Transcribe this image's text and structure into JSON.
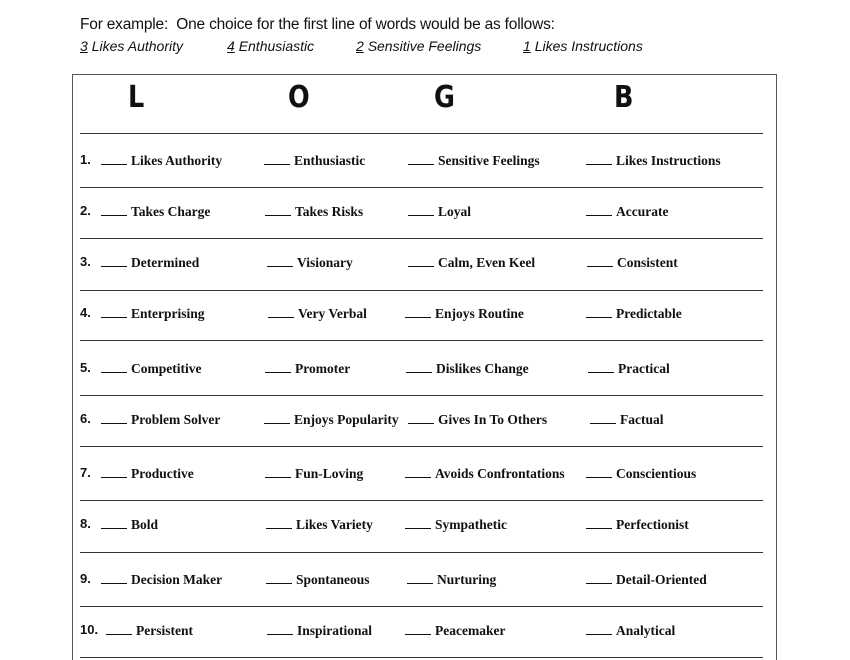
{
  "intro": {
    "lead": "For example:",
    "text": "One choice for the first line of words would be as follows:"
  },
  "examples": [
    {
      "rank": "3",
      "label": "Likes Authority"
    },
    {
      "rank": "4",
      "label": "Enthusiastic"
    },
    {
      "rank": "2",
      "label": "Sensitive Feelings"
    },
    {
      "rank": "1",
      "label": "Likes Instructions"
    }
  ],
  "columns": [
    "L",
    "O",
    "G",
    "B"
  ],
  "rows": [
    {
      "num": "1.",
      "items": [
        "Likes Authority",
        "Enthusiastic",
        "Sensitive Feelings",
        "Likes Instructions"
      ]
    },
    {
      "num": "2.",
      "items": [
        "Takes Charge",
        "Takes Risks",
        "Loyal",
        "Accurate"
      ]
    },
    {
      "num": "3.",
      "items": [
        "Determined",
        "Visionary",
        "Calm, Even Keel",
        "Consistent"
      ]
    },
    {
      "num": "4.",
      "items": [
        "Enterprising",
        "Very Verbal",
        "Enjoys Routine",
        "Predictable"
      ]
    },
    {
      "num": "5.",
      "items": [
        "Competitive",
        "Promoter",
        "Dislikes Change",
        "Practical"
      ]
    },
    {
      "num": "6.",
      "items": [
        "Problem Solver",
        "Enjoys Popularity",
        "Gives In To Others",
        "Factual"
      ]
    },
    {
      "num": "7.",
      "items": [
        "Productive",
        "Fun-Loving",
        "Avoids Confrontations",
        "Conscientious"
      ]
    },
    {
      "num": "8.",
      "items": [
        "Bold",
        "Likes Variety",
        "Sympathetic",
        "Perfectionist"
      ]
    },
    {
      "num": "9.",
      "items": [
        "Decision Maker",
        "Spontaneous",
        "Nurturing",
        "Detail-Oriented"
      ]
    },
    {
      "num": "10.",
      "items": [
        "Persistent",
        "Inspirational",
        "Peacemaker",
        "Analytical"
      ]
    }
  ]
}
